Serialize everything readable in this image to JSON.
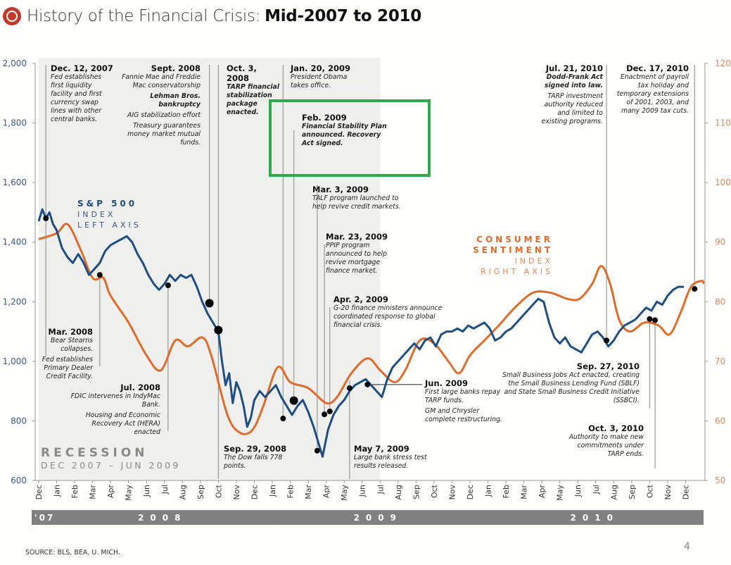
{
  "header": {
    "title_light": "History of the Financial Crisis:",
    "title_bold": "Mid-2007 to 2010",
    "logo_icon": "clock-icon"
  },
  "footer": {
    "source": "SOURCE: BLS,  BEA, U. MICH.",
    "page_number": "4"
  },
  "colors": {
    "sp500": "#1f4e82",
    "sentiment": "#e06c2c",
    "recession_shade": "#efefed",
    "year_band": "#808080",
    "highlight_box": "#2eaa4a",
    "left_axis_text": "#3d5a80",
    "right_axis_text": "#e0885a"
  },
  "chart_data": {
    "type": "line",
    "title": "History of the Financial Crisis: Mid-2007 to 2010",
    "x_unit": "months since start of Dec 2007",
    "x_ticks": [
      "Dec",
      "Jan",
      "Feb",
      "Mar",
      "Apr",
      "May",
      "Jun",
      "Jul",
      "Aug",
      "Sep",
      "Oct",
      "Nov",
      "Dec",
      "Jan",
      "Feb",
      "Mar",
      "Apr",
      "May",
      "Jun",
      "Jul",
      "Aug",
      "Sep",
      "Oct",
      "Nov",
      "Dec",
      "Jan",
      "Feb",
      "Mar",
      "Apr",
      "May",
      "Jun",
      "Jul",
      "Aug",
      "Sep",
      "Oct",
      "Nov",
      "Dec"
    ],
    "year_bands": [
      {
        "label": "'07",
        "start": 0,
        "end": 1
      },
      {
        "label": "2008",
        "start": 1,
        "end": 13
      },
      {
        "label": "2009",
        "start": 13,
        "end": 25
      },
      {
        "label": "2010",
        "start": 25,
        "end": 37
      }
    ],
    "left_axis": {
      "label": "S&P 500 Index",
      "ylim": [
        600,
        2000
      ],
      "ticks": [
        "600",
        "800",
        "1,000",
        "1,200",
        "1,400",
        "1,600",
        "1,800",
        "2,000"
      ],
      "tick_values": [
        600,
        800,
        1000,
        1200,
        1400,
        1600,
        1800,
        2000
      ]
    },
    "right_axis": {
      "label": "Consumer Sentiment Index",
      "ylim": [
        50,
        120
      ],
      "ticks": [
        "50",
        "60",
        "70",
        "80",
        "90",
        "100",
        "110",
        "120"
      ],
      "tick_values": [
        50,
        60,
        70,
        80,
        90,
        100,
        110,
        120
      ]
    },
    "series": [
      {
        "name": "S&P 500",
        "axis": "left",
        "points": [
          [
            0,
            1470
          ],
          [
            0.2,
            1510
          ],
          [
            0.4,
            1480
          ],
          [
            0.6,
            1500
          ],
          [
            0.8,
            1460
          ],
          [
            1,
            1440
          ],
          [
            1.3,
            1380
          ],
          [
            1.6,
            1350
          ],
          [
            1.9,
            1330
          ],
          [
            2.2,
            1360
          ],
          [
            2.5,
            1330
          ],
          [
            2.8,
            1290
          ],
          [
            3.1,
            1310
          ],
          [
            3.4,
            1330
          ],
          [
            3.7,
            1370
          ],
          [
            4,
            1390
          ],
          [
            4.3,
            1400
          ],
          [
            4.6,
            1410
          ],
          [
            4.9,
            1420
          ],
          [
            5.2,
            1400
          ],
          [
            5.5,
            1360
          ],
          [
            5.8,
            1330
          ],
          [
            6.1,
            1290
          ],
          [
            6.4,
            1260
          ],
          [
            6.7,
            1240
          ],
          [
            7,
            1260
          ],
          [
            7.3,
            1290
          ],
          [
            7.6,
            1270
          ],
          [
            7.9,
            1290
          ],
          [
            8.2,
            1280
          ],
          [
            8.5,
            1290
          ],
          [
            8.8,
            1250
          ],
          [
            9.1,
            1200
          ],
          [
            9.4,
            1160
          ],
          [
            9.7,
            1130
          ],
          [
            10,
            1100
          ],
          [
            10.2,
            1000
          ],
          [
            10.4,
            920
          ],
          [
            10.6,
            960
          ],
          [
            10.8,
            860
          ],
          [
            11,
            930
          ],
          [
            11.2,
            900
          ],
          [
            11.4,
            850
          ],
          [
            11.6,
            780
          ],
          [
            11.8,
            810
          ],
          [
            12,
            870
          ],
          [
            12.3,
            900
          ],
          [
            12.6,
            880
          ],
          [
            12.9,
            900
          ],
          [
            13.2,
            920
          ],
          [
            13.5,
            880
          ],
          [
            13.8,
            850
          ],
          [
            14.1,
            820
          ],
          [
            14.4,
            850
          ],
          [
            14.7,
            870
          ],
          [
            15,
            830
          ],
          [
            15.3,
            780
          ],
          [
            15.6,
            720
          ],
          [
            15.8,
            680
          ],
          [
            16.1,
            770
          ],
          [
            16.4,
            820
          ],
          [
            16.7,
            850
          ],
          [
            17,
            870
          ],
          [
            17.3,
            900
          ],
          [
            17.6,
            920
          ],
          [
            17.9,
            930
          ],
          [
            18.2,
            940
          ],
          [
            18.5,
            920
          ],
          [
            18.8,
            900
          ],
          [
            19.1,
            880
          ],
          [
            19.4,
            940
          ],
          [
            19.7,
            980
          ],
          [
            20,
            1000
          ],
          [
            20.3,
            1020
          ],
          [
            20.6,
            1040
          ],
          [
            20.9,
            1060
          ],
          [
            21.2,
            1040
          ],
          [
            21.5,
            1070
          ],
          [
            21.8,
            1080
          ],
          [
            22.1,
            1050
          ],
          [
            22.4,
            1090
          ],
          [
            22.7,
            1100
          ],
          [
            23,
            1100
          ],
          [
            23.3,
            1110
          ],
          [
            23.6,
            1100
          ],
          [
            23.9,
            1120
          ],
          [
            24.2,
            1110
          ],
          [
            24.5,
            1120
          ],
          [
            24.8,
            1130
          ],
          [
            25.1,
            1110
          ],
          [
            25.4,
            1070
          ],
          [
            25.7,
            1080
          ],
          [
            26,
            1100
          ],
          [
            26.3,
            1110
          ],
          [
            26.6,
            1130
          ],
          [
            26.9,
            1150
          ],
          [
            27.2,
            1170
          ],
          [
            27.5,
            1190
          ],
          [
            27.8,
            1210
          ],
          [
            28.1,
            1200
          ],
          [
            28.4,
            1130
          ],
          [
            28.7,
            1080
          ],
          [
            29,
            1060
          ],
          [
            29.3,
            1080
          ],
          [
            29.6,
            1050
          ],
          [
            29.9,
            1040
          ],
          [
            30.2,
            1030
          ],
          [
            30.5,
            1060
          ],
          [
            30.8,
            1090
          ],
          [
            31.1,
            1100
          ],
          [
            31.4,
            1080
          ],
          [
            31.7,
            1050
          ],
          [
            32,
            1070
          ],
          [
            32.3,
            1100
          ],
          [
            32.6,
            1120
          ],
          [
            32.9,
            1130
          ],
          [
            33.2,
            1140
          ],
          [
            33.5,
            1160
          ],
          [
            33.8,
            1180
          ],
          [
            34.1,
            1170
          ],
          [
            34.4,
            1200
          ],
          [
            34.7,
            1190
          ],
          [
            35,
            1220
          ],
          [
            35.3,
            1240
          ],
          [
            35.6,
            1250
          ],
          [
            35.9,
            1250
          ]
        ]
      },
      {
        "name": "Consumer Sentiment",
        "axis": "right",
        "points": [
          [
            0,
            90.5
          ],
          [
            1,
            91.5
          ],
          [
            1.6,
            93
          ],
          [
            2.3,
            89
          ],
          [
            3,
            84
          ],
          [
            3.6,
            84
          ],
          [
            4,
            81
          ],
          [
            5,
            76.5
          ],
          [
            6,
            71
          ],
          [
            6.8,
            68.5
          ],
          [
            7.6,
            73.5
          ],
          [
            8.3,
            72.5
          ],
          [
            9.1,
            74
          ],
          [
            9.6,
            71
          ],
          [
            10.5,
            61
          ],
          [
            11.2,
            58
          ],
          [
            11.9,
            58.5
          ],
          [
            12.5,
            62.5
          ],
          [
            13.3,
            69
          ],
          [
            14,
            66.5
          ],
          [
            15,
            65.5
          ],
          [
            16,
            63
          ],
          [
            16.6,
            64
          ],
          [
            17.4,
            68
          ],
          [
            18.3,
            70.5
          ],
          [
            19,
            68.5
          ],
          [
            19.8,
            66.5
          ],
          [
            20.4,
            68.5
          ],
          [
            21.2,
            73.5
          ],
          [
            22,
            73
          ],
          [
            22.8,
            70
          ],
          [
            23.4,
            68
          ],
          [
            24,
            71
          ],
          [
            24.8,
            73.5
          ],
          [
            25.6,
            76
          ],
          [
            26.5,
            79
          ],
          [
            27.5,
            81.5
          ],
          [
            28.5,
            81.5
          ],
          [
            29.4,
            80.5
          ],
          [
            30.1,
            80.5
          ],
          [
            30.8,
            83
          ],
          [
            31.3,
            86
          ],
          [
            31.8,
            83
          ],
          [
            32.3,
            77
          ],
          [
            32.9,
            75
          ],
          [
            33.7,
            76.5
          ],
          [
            34.5,
            76
          ],
          [
            35.1,
            74.5
          ],
          [
            35.7,
            78
          ],
          [
            36.3,
            82.5
          ],
          [
            36.9,
            83.5
          ],
          [
            37,
            83
          ]
        ]
      }
    ],
    "recession": {
      "label": "RECESSION",
      "sub": "DEC 2007 – JUN 2009",
      "start": 0,
      "end": 19
    }
  },
  "legends": {
    "sp500": {
      "l1": "S&P 500",
      "l2": "INDEX",
      "l3": "LEFT AXIS"
    },
    "sentiment": {
      "l1": "CONSUMER",
      "l2": "SENTIMENT",
      "l3": "INDEX",
      "l4": "RIGHT AXIS"
    }
  },
  "annotations": [
    {
      "id": "dec-2007",
      "date": "Dec. 12, 2007",
      "lines": [
        "Fed establishes",
        "first liquidity",
        "facility and first",
        "currency swap",
        "lines with other",
        "central banks."
      ]
    },
    {
      "id": "sept-2008",
      "date": "Sept. 2008",
      "p1": "Fannie Mae and Freddie Mac conservatorship",
      "p2": "Lehman Bros. bankruptcy",
      "p3": "AIG stabilization effort",
      "p4": "Treasury guarantees money market mutual funds."
    },
    {
      "id": "oct-2008",
      "date": "Oct. 3, 2008",
      "text": "TARP financial stabilization package enacted."
    },
    {
      "id": "jan-2009",
      "date": "Jan. 20, 2009",
      "text": "President Obama takes office."
    },
    {
      "id": "feb-2009",
      "date": "Feb. 2009",
      "text": "Financial Stability Plan announced. Recovery Act signed."
    },
    {
      "id": "mar3-2009",
      "date": "Mar. 3, 2009",
      "text": "TALF program launched to help revive credit markets."
    },
    {
      "id": "mar23-2009",
      "date": "Mar. 23, 2009",
      "text": "PPIP program announced to help revive mortgage finance market."
    },
    {
      "id": "apr-2009",
      "date": "Apr. 2, 2009",
      "text": "G-20 finance ministers announce coordinated response to global financial crisis."
    },
    {
      "id": "mar-2008",
      "date": "Mar. 2008",
      "p1": "Bear Stearns collapses.",
      "p2": "Fed establishes Primary Dealer Credit Facility."
    },
    {
      "id": "jul-2008",
      "date": "Jul. 2008",
      "p1": "FDIC intervenes in IndyMac Bank.",
      "p2": "Housing and Economic Recovery Act (HERA) enacted"
    },
    {
      "id": "sep29-2008",
      "date": "Sep. 29, 2008",
      "text": "The Dow falls 778 points."
    },
    {
      "id": "may-2009",
      "date": "May 7, 2009",
      "text": "Large bank stress test results released."
    },
    {
      "id": "jun-2009",
      "date": "Jun. 2009",
      "p1": "First large banks repay TARP funds.",
      "p2": "GM and Chrysler complete restructuring."
    },
    {
      "id": "jul-2010",
      "date": "Jul. 21, 2010",
      "p1": "Dodd-Frank Act signed into law.",
      "p2": "TARP investment authority reduced and limited to existing programs."
    },
    {
      "id": "dec-2010",
      "date": "Dec. 17, 2010",
      "text": "Enactment of payroll tax holiday and temporary extensions of 2001, 2003, and many 2009 tax cuts."
    },
    {
      "id": "sep27-2010",
      "date": "Sep. 27, 2010",
      "text": "Small Business Jobs Act enacted, creating the Small Business Lending Fund (SBLF) and State Small Business Credit Initiative (SSBCI)."
    },
    {
      "id": "oct3-2010",
      "date": "Oct. 3, 2010",
      "text": "Authority to make new commitments under TARP ends."
    }
  ],
  "event_markers": [
    {
      "t": 0.4,
      "v": 1480,
      "size": "small"
    },
    {
      "t": 3.4,
      "v": 1290,
      "size": "small"
    },
    {
      "t": 7.2,
      "v": 1255,
      "size": "small"
    },
    {
      "t": 9.5,
      "v": 1195,
      "size": "large"
    },
    {
      "t": 10.0,
      "v": 1105,
      "size": "large"
    },
    {
      "t": 13.6,
      "v": 808,
      "size": "small"
    },
    {
      "t": 14.2,
      "v": 868,
      "size": "large"
    },
    {
      "t": 15.5,
      "v": 700,
      "size": "small"
    },
    {
      "t": 15.9,
      "v": 822,
      "size": "small"
    },
    {
      "t": 16.2,
      "v": 832,
      "size": "small"
    },
    {
      "t": 17.3,
      "v": 910,
      "size": "small"
    },
    {
      "t": 18.3,
      "v": 922,
      "size": "small"
    },
    {
      "t": 31.6,
      "v": 1070,
      "size": "small"
    },
    {
      "t": 34.0,
      "v": 1142,
      "size": "small"
    },
    {
      "t": 34.3,
      "v": 1138,
      "size": "small"
    },
    {
      "t": 36.5,
      "v": 1243,
      "size": "small"
    }
  ]
}
